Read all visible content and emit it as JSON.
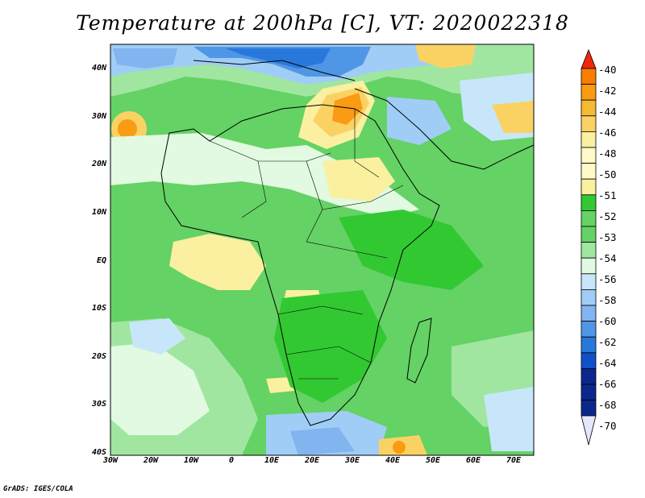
{
  "title": "Temperature at 200hPa [C], VT: 2020022318",
  "credit": "GrADS: IGES/COLA",
  "map": {
    "region": "Africa and surrounding ocean",
    "lat_range": [
      -40,
      45
    ],
    "lon_range": [
      -30,
      75
    ],
    "lat_labels": [
      "40N",
      "30N",
      "20N",
      "10N",
      "EQ",
      "10S",
      "20S",
      "30S",
      "40S"
    ],
    "lon_labels": [
      "30W",
      "20W",
      "10W",
      "0",
      "10E",
      "20E",
      "30E",
      "40E",
      "50E",
      "60E",
      "70E"
    ]
  },
  "colorbar": {
    "labels": [
      "-40",
      "-42",
      "-44",
      "-46",
      "-48",
      "-50",
      "-51",
      "-52",
      "-53",
      "-54",
      "-56",
      "-58",
      "-60",
      "-62",
      "-64",
      "-66",
      "-68",
      "-70"
    ],
    "colors": [
      "#f0280a",
      "#fa7d00",
      "#fa9b14",
      "#f5b932",
      "#fad264",
      "#faf0a0",
      "#fffac8",
      "#32c832",
      "#64d264",
      "#a0e6a0",
      "#e1fae1",
      "#c8e6fa",
      "#a0cdf5",
      "#82b4f0",
      "#5096e6",
      "#2878dc",
      "#1050c8",
      "#0a288c",
      "#e6e6fa"
    ]
  }
}
